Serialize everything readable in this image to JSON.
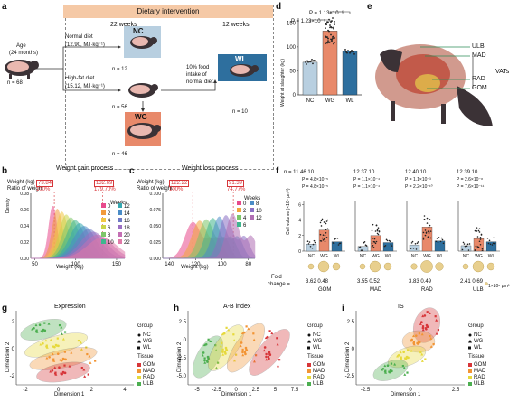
{
  "panel_labels": [
    "a",
    "b",
    "c",
    "d",
    "e",
    "f",
    "g",
    "h",
    "i"
  ],
  "a": {
    "age_label": "Age",
    "age_value": "(24 months)",
    "n_start": "n = 68",
    "header": "Dietary intervention",
    "phase1": "22 weeks",
    "phase2": "12 weeks",
    "normal_diet": "Normal diet",
    "normal_energy": "(12.90, MJ·kg⁻¹)",
    "hf_diet": "High-fat diet",
    "hf_energy": "(15.12, MJ·kg⁻¹)",
    "nc": "NC",
    "nc_n": "n = 12",
    "hf_n": "n = 56",
    "wg": "WG",
    "wg_n": "n = 46",
    "restrict": "10% food",
    "restrict2": "intake of",
    "restrict3": "normal diet",
    "wl": "WL",
    "wl_n": "n = 10",
    "colors": {
      "nc": "#b8cfe0",
      "wg": "#e8896a",
      "wl": "#2e6f9e"
    }
  },
  "b": {
    "title": "Weight gain process",
    "row1": "Weight (kg)",
    "row2": "Ratio of weight",
    "v1": "73.84",
    "r1": "100%",
    "v2": "132.69",
    "r2": "179.70%",
    "legend_title": "Weeks",
    "weeks": [
      "0",
      "2",
      "4",
      "6",
      "8",
      "10",
      "12",
      "14",
      "16",
      "18",
      "20",
      "22"
    ],
    "week_colors": [
      "#e84a8c",
      "#f29a3b",
      "#f2c744",
      "#c9d44a",
      "#7cc66a",
      "#3fb68e",
      "#35a7b0",
      "#4a8cc7",
      "#6f79c4",
      "#9b6fc2",
      "#c46fb4",
      "#e07aa8"
    ],
    "ylabel": "Density",
    "xlabel": "Weight (kg)",
    "xticks": [
      "50",
      "100",
      "150"
    ],
    "yticks": [
      "0.00",
      "0.02",
      "0.04",
      "0.06",
      "0.08"
    ]
  },
  "c": {
    "title": "Weight loss process",
    "row1": "Weight (kg)",
    "row2": "Ratio of weight",
    "v1": "122.22",
    "r1": "100%",
    "v2": "91.39",
    "r2": "74.77%",
    "legend_title": "Weeks",
    "weeks": [
      "0",
      "2",
      "4",
      "6",
      "8",
      "10",
      "12"
    ],
    "week_colors": [
      "#e84a8c",
      "#f2a53b",
      "#7cc66a",
      "#3fb68e",
      "#4a8cc7",
      "#8a6fc4",
      "#b06fb4"
    ],
    "xlabel": "Weight (kg)",
    "xticks": [
      "140",
      "120",
      "100",
      "80"
    ],
    "yticks": [
      "0.000",
      "0.025",
      "0.050",
      "0.075",
      "0.100"
    ]
  },
  "d": {
    "ylabel": "Weight at slaughter (kg)",
    "p1": "P = 1.23×10⁻⁷",
    "p2": "P = 1.13×10⁻⁶",
    "groups": [
      "NC",
      "WG",
      "WL"
    ],
    "means": [
      68,
      133,
      91
    ],
    "yticks": [
      "0",
      "50",
      "100",
      "150"
    ]
  },
  "e": {
    "labels": [
      "ULB",
      "MAD",
      "RAD",
      "GOM"
    ],
    "vats": "VATs"
  },
  "f": {
    "ylabel": "Cell volume (×10⁵ μm³)",
    "tissues": [
      {
        "name": "GOM",
        "n": [
          "n = 11",
          "46",
          "10"
        ],
        "p1": "P = 4.8×10⁻⁵",
        "p2": "P = 4.8×10⁻⁵",
        "means": [
          0.9,
          2.7,
          1.2
        ],
        "fold1": "3.62",
        "fold2": "0.48"
      },
      {
        "name": "MAD",
        "n": [
          "12",
          "37",
          "10"
        ],
        "p1": "P = 1.1×10⁻⁴",
        "p2": "P = 1.1×10⁻⁴",
        "means": [
          0.6,
          2.0,
          1.1
        ],
        "fold1": "3.55",
        "fold2": "0.52"
      },
      {
        "name": "RAD",
        "n": [
          "12",
          "40",
          "10"
        ],
        "p1": "P = 1.1×10⁻³",
        "p2": "P = 2.2×10⁻¹⁰",
        "means": [
          0.8,
          3.1,
          1.3
        ],
        "fold1": "3.83",
        "fold2": "0.49"
      },
      {
        "name": "ULB",
        "n": [
          "12",
          "39",
          "10"
        ],
        "p1": "P = 2.6×10⁻⁸",
        "p2": "P = 7.6×10⁻¹¹",
        "means": [
          0.7,
          1.6,
          1.2
        ],
        "fold1": "2.41",
        "fold2": "0.69"
      }
    ],
    "groups": [
      "NC",
      "WG",
      "WL"
    ],
    "yticks": [
      "0",
      "2",
      "4",
      "6"
    ],
    "fold_label": "Fold",
    "change_label": "change = ",
    "scale_label": "1×10⁶ μm³"
  },
  "scatter": [
    {
      "title": "Expression",
      "xlabel": "Dimension 1",
      "ylabel": "Dimension 2",
      "xticks": [
        "-2",
        "0",
        "2",
        "4"
      ],
      "yticks": [
        "2",
        "0",
        "-2"
      ]
    },
    {
      "title": "A-B index",
      "xlabel": "Dimension 1",
      "ylabel": "Dimension 2",
      "xticks": [
        "-5",
        "-2.5",
        "0",
        "2.5",
        "5",
        "7.5"
      ],
      "yticks": [
        "2.5",
        "0",
        "-2.5",
        "-5.0"
      ]
    },
    {
      "title": "IS",
      "xlabel": "Dimension 1",
      "ylabel": "Dimension 2",
      "xticks": [
        "-2.5",
        "0",
        "2.5"
      ],
      "yticks": [
        "2.5",
        "0",
        "-2.5"
      ]
    }
  ],
  "legend": {
    "group_title": "Group",
    "groups": [
      "NC",
      "WG",
      "WL"
    ],
    "tissue_title": "Tissue",
    "tissues": [
      "GOM",
      "MAD",
      "RAD",
      "ULB"
    ],
    "tissue_colors": [
      "#d7363a",
      "#f29433",
      "#e6d93b",
      "#4caf50"
    ]
  }
}
